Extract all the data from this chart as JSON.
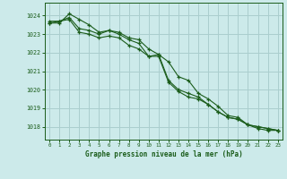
{
  "title": "Graphe pression niveau de la mer (hPa)",
  "bg_color": "#cceaea",
  "grid_color": "#aacece",
  "line_color": "#1a5c1a",
  "marker_color": "#1a5c1a",
  "label_color": "#1a5c1a",
  "tick_color": "#1a5c1a",
  "xlim": [
    -0.5,
    23.5
  ],
  "ylim": [
    1017.3,
    1024.7
  ],
  "yticks": [
    1018,
    1019,
    1020,
    1021,
    1022,
    1023,
    1024
  ],
  "xticks": [
    0,
    1,
    2,
    3,
    4,
    5,
    6,
    7,
    8,
    9,
    10,
    11,
    12,
    13,
    14,
    15,
    16,
    17,
    18,
    19,
    20,
    21,
    22,
    23
  ],
  "series": [
    {
      "x": [
        0,
        1,
        2,
        3,
        4,
        5,
        6,
        7,
        8,
        9,
        10,
        11,
        12,
        13,
        14,
        15,
        16,
        17,
        18,
        19,
        20,
        21,
        22,
        23
      ],
      "y": [
        1023.6,
        1023.7,
        1023.9,
        1023.3,
        1023.2,
        1023.0,
        1023.2,
        1023.1,
        1022.8,
        1022.7,
        1022.2,
        1021.9,
        1021.5,
        1020.7,
        1020.5,
        1019.8,
        1019.5,
        1019.1,
        1018.6,
        1018.5,
        1018.1,
        1017.9,
        1017.8,
        1017.8
      ]
    },
    {
      "x": [
        0,
        1,
        2,
        3,
        4,
        5,
        6,
        7,
        8,
        9,
        10,
        11,
        12,
        13,
        14,
        15,
        16,
        17,
        18,
        19,
        20,
        21,
        22,
        23
      ],
      "y": [
        1023.6,
        1023.6,
        1024.1,
        1023.8,
        1023.5,
        1023.1,
        1023.2,
        1023.0,
        1022.7,
        1022.5,
        1021.8,
        1021.9,
        1020.5,
        1020.0,
        1019.8,
        1019.6,
        1019.2,
        1018.8,
        1018.5,
        1018.4,
        1018.1,
        1018.0,
        1017.9,
        1017.8
      ]
    },
    {
      "x": [
        0,
        1,
        2,
        3,
        4,
        5,
        6,
        7,
        8,
        9,
        10,
        11,
        12,
        13,
        14,
        15,
        16,
        17,
        18,
        19,
        20,
        21,
        22,
        23
      ],
      "y": [
        1023.7,
        1023.7,
        1023.8,
        1023.1,
        1023.0,
        1022.8,
        1022.9,
        1022.8,
        1022.4,
        1022.2,
        1021.8,
        1021.8,
        1020.4,
        1019.9,
        1019.6,
        1019.5,
        1019.2,
        1018.8,
        1018.5,
        1018.4,
        1018.1,
        1018.0,
        1017.9,
        1017.8
      ]
    }
  ]
}
